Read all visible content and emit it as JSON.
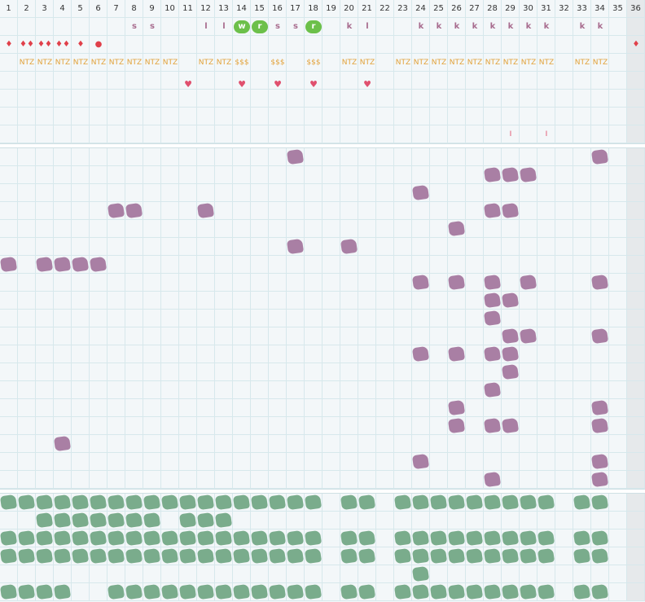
{
  "columns": [
    "1",
    "2",
    "3",
    "4",
    "5",
    "6",
    "7",
    "8",
    "9",
    "10",
    "11",
    "12",
    "13",
    "14",
    "15",
    "16",
    "17",
    "18",
    "19",
    "20",
    "21",
    "22",
    "23",
    "24",
    "25",
    "26",
    "27",
    "28",
    "29",
    "30",
    "31",
    "32",
    "33",
    "34",
    "35",
    "36"
  ],
  "letters": [
    {
      "col": 8,
      "text": "s"
    },
    {
      "col": 9,
      "text": "s"
    },
    {
      "col": 12,
      "text": "l"
    },
    {
      "col": 13,
      "text": "l"
    },
    {
      "col": 16,
      "text": "s"
    },
    {
      "col": 17,
      "text": "s"
    },
    {
      "col": 20,
      "text": "k"
    },
    {
      "col": 21,
      "text": "l"
    },
    {
      "col": 24,
      "text": "k"
    },
    {
      "col": 25,
      "text": "k"
    },
    {
      "col": 26,
      "text": "k"
    },
    {
      "col": 27,
      "text": "k"
    },
    {
      "col": 28,
      "text": "k"
    },
    {
      "col": 29,
      "text": "k"
    },
    {
      "col": 30,
      "text": "k"
    },
    {
      "col": 31,
      "text": "k"
    },
    {
      "col": 33,
      "text": "k"
    },
    {
      "col": 34,
      "text": "k"
    }
  ],
  "badges": [
    {
      "col": 14,
      "text": "w"
    },
    {
      "col": 15,
      "text": "r"
    },
    {
      "col": 18,
      "text": "r"
    }
  ],
  "drops": [
    {
      "col": 1,
      "text": "♦"
    },
    {
      "col": 2,
      "text": "♦♦"
    },
    {
      "col": 3,
      "text": "♦♦"
    },
    {
      "col": 4,
      "text": "♦♦"
    },
    {
      "col": 5,
      "text": "♦"
    },
    {
      "col": 6,
      "text": "●"
    },
    {
      "col": 36,
      "text": "♦"
    }
  ],
  "tags": [
    {
      "col": 2,
      "text": "NTZ"
    },
    {
      "col": 3,
      "text": "NTZ"
    },
    {
      "col": 4,
      "text": "NTZ"
    },
    {
      "col": 5,
      "text": "NTZ"
    },
    {
      "col": 6,
      "text": "NTZ"
    },
    {
      "col": 7,
      "text": "NTZ"
    },
    {
      "col": 8,
      "text": "NTZ"
    },
    {
      "col": 9,
      "text": "NTZ"
    },
    {
      "col": 10,
      "text": "NTZ"
    },
    {
      "col": 12,
      "text": "NTZ"
    },
    {
      "col": 13,
      "text": "NTZ"
    },
    {
      "col": 14,
      "text": "$$$"
    },
    {
      "col": 16,
      "text": "$$$"
    },
    {
      "col": 18,
      "text": "$$$"
    },
    {
      "col": 20,
      "text": "NTZ"
    },
    {
      "col": 21,
      "text": "NTZ"
    },
    {
      "col": 23,
      "text": "NTZ"
    },
    {
      "col": 24,
      "text": "NTZ"
    },
    {
      "col": 25,
      "text": "NTZ"
    },
    {
      "col": 26,
      "text": "NTZ"
    },
    {
      "col": 27,
      "text": "NTZ"
    },
    {
      "col": 28,
      "text": "NTZ"
    },
    {
      "col": 29,
      "text": "NTZ"
    },
    {
      "col": 30,
      "text": "NTZ"
    },
    {
      "col": 31,
      "text": "NTZ"
    },
    {
      "col": 33,
      "text": "NTZ"
    },
    {
      "col": 34,
      "text": "NTZ"
    }
  ],
  "hearts": [
    {
      "col": 11,
      "text": "♥"
    },
    {
      "col": 14,
      "text": "♥"
    },
    {
      "col": 16,
      "text": "♥"
    },
    {
      "col": 18,
      "text": "♥"
    },
    {
      "col": 21,
      "text": "♥"
    }
  ],
  "ticks": [
    {
      "col": 29,
      "text": "I"
    },
    {
      "col": 31,
      "text": "I"
    }
  ],
  "purple_rows": [
    [
      17,
      34
    ],
    [
      28,
      29,
      30
    ],
    [
      24
    ],
    [
      7,
      8,
      12,
      28,
      29
    ],
    [
      26
    ],
    [
      17,
      20
    ],
    [
      1,
      3,
      4,
      5,
      6
    ],
    [
      24,
      26,
      28,
      30,
      34
    ],
    [
      28,
      29
    ],
    [
      28
    ],
    [
      29,
      30,
      34
    ],
    [
      24,
      26,
      28,
      29
    ],
    [
      29
    ],
    [
      28
    ],
    [
      26,
      34
    ],
    [
      26,
      28,
      29,
      34
    ],
    [
      4
    ],
    [
      24,
      34
    ],
    [
      28,
      34
    ]
  ],
  "green_rows": [
    [
      1,
      2,
      3,
      4,
      5,
      6,
      7,
      8,
      9,
      10,
      11,
      12,
      13,
      14,
      15,
      16,
      17,
      18,
      20,
      21,
      23,
      24,
      25,
      26,
      27,
      28,
      29,
      30,
      31,
      33,
      34
    ],
    [
      3,
      4,
      5,
      6,
      7,
      8,
      9,
      11,
      12,
      13
    ],
    [
      1,
      2,
      3,
      4,
      5,
      6,
      7,
      8,
      9,
      10,
      11,
      12,
      13,
      14,
      15,
      16,
      17,
      18,
      20,
      21,
      23,
      24,
      25,
      26,
      27,
      28,
      29,
      30,
      31,
      33,
      34
    ],
    [
      1,
      2,
      3,
      4,
      5,
      6,
      7,
      8,
      9,
      10,
      11,
      12,
      13,
      14,
      15,
      16,
      17,
      18,
      20,
      21,
      23,
      24,
      25,
      26,
      27,
      28,
      29,
      30,
      31,
      33,
      34
    ],
    [
      24
    ],
    [
      1,
      2,
      3,
      4,
      7,
      8,
      9,
      10,
      11,
      12,
      13,
      14,
      15,
      16,
      17,
      18,
      20,
      21,
      23,
      24,
      25,
      26,
      27,
      28,
      29,
      30,
      31,
      33,
      34
    ]
  ],
  "colors": {
    "purple": "#a97fa4",
    "green": "#7aac8c",
    "badge": "#6cc04a",
    "grid_line": "#d7e8ec"
  }
}
